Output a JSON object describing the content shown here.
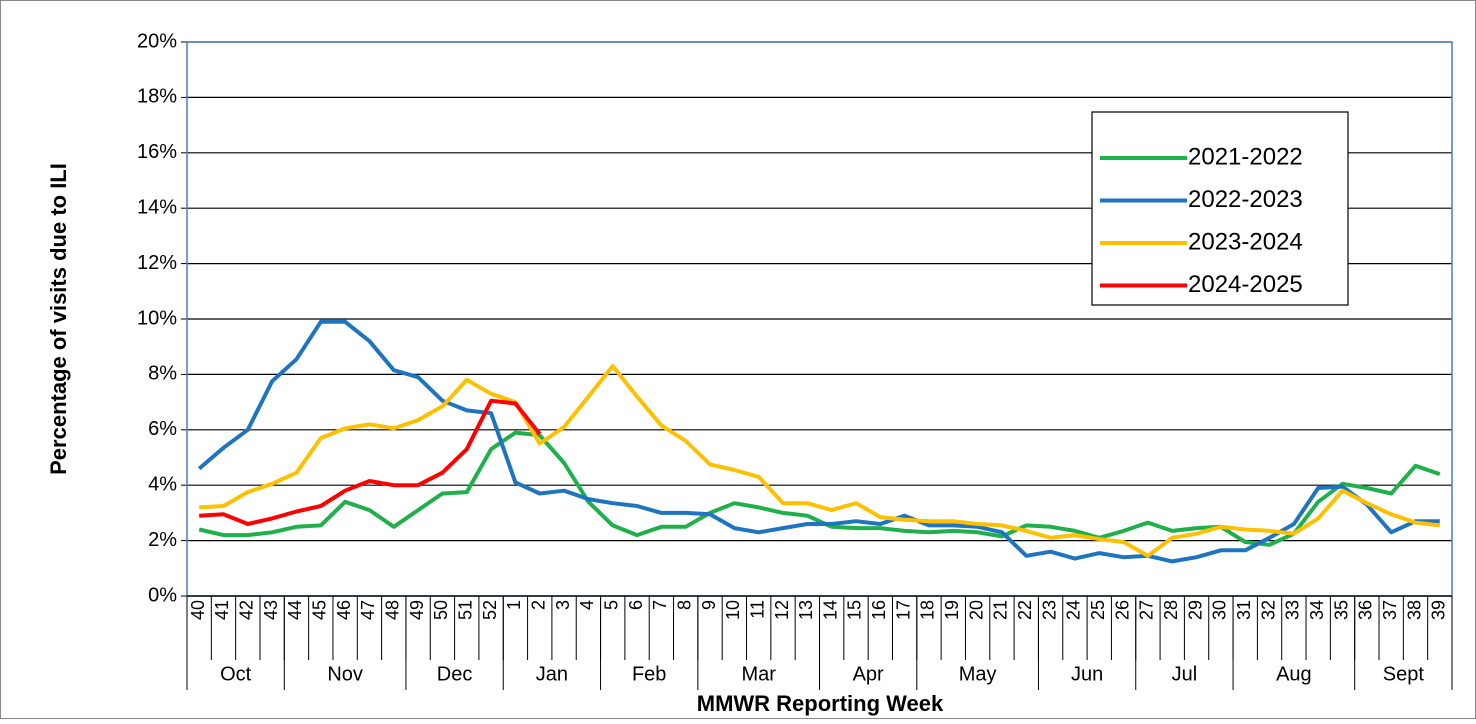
{
  "chart_data": {
    "type": "line",
    "y_label": "Percentage of visits due to ILI",
    "x_label": "MMWR Reporting Week",
    "categories": [
      "40",
      "41",
      "42",
      "43",
      "44",
      "45",
      "46",
      "47",
      "48",
      "49",
      "50",
      "51",
      "52",
      "1",
      "2",
      "3",
      "4",
      "5",
      "6",
      "7",
      "8",
      "9",
      "10",
      "11",
      "12",
      "13",
      "14",
      "15",
      "16",
      "17",
      "18",
      "19",
      "20",
      "21",
      "22",
      "23",
      "24",
      "25",
      "26",
      "27",
      "28",
      "29",
      "30",
      "31",
      "32",
      "33",
      "34",
      "35",
      "36",
      "37",
      "38",
      "39"
    ],
    "month_groups": [
      {
        "label": "Oct",
        "count": 4
      },
      {
        "label": "Nov",
        "count": 5
      },
      {
        "label": "Dec",
        "count": 4
      },
      {
        "label": "Jan",
        "count": 4
      },
      {
        "label": "Feb",
        "count": 4
      },
      {
        "label": "Mar",
        "count": 5
      },
      {
        "label": "Apr",
        "count": 4
      },
      {
        "label": "May",
        "count": 5
      },
      {
        "label": "Jun",
        "count": 4
      },
      {
        "label": "Jul",
        "count": 4
      },
      {
        "label": "Aug",
        "count": 5
      },
      {
        "label": "Sept",
        "count": 4
      }
    ],
    "ylim": [
      0,
      20
    ],
    "yticks": [
      {
        "value": 0,
        "label": "0%"
      },
      {
        "value": 2,
        "label": "2%"
      },
      {
        "value": 4,
        "label": "4%"
      },
      {
        "value": 6,
        "label": "6%"
      },
      {
        "value": 8,
        "label": "8%"
      },
      {
        "value": 10,
        "label": "10%"
      },
      {
        "value": 12,
        "label": "12%"
      },
      {
        "value": 14,
        "label": "14%"
      },
      {
        "value": 16,
        "label": "16%"
      },
      {
        "value": 18,
        "label": "18%"
      },
      {
        "value": 20,
        "label": "20%"
      }
    ],
    "grid": true,
    "legend": "upper right",
    "series": [
      {
        "name": "2021-2022",
        "color": "#1fb04b",
        "values": [
          2.4,
          2.2,
          2.2,
          2.3,
          2.5,
          2.55,
          3.4,
          3.1,
          2.5,
          3.1,
          3.7,
          3.75,
          5.3,
          5.9,
          5.8,
          4.8,
          3.4,
          2.55,
          2.2,
          2.5,
          2.5,
          3.0,
          3.35,
          3.2,
          3.0,
          2.9,
          2.5,
          2.45,
          2.45,
          2.35,
          2.3,
          2.35,
          2.3,
          2.15,
          2.55,
          2.5,
          2.35,
          2.1,
          2.35,
          2.65,
          2.35,
          2.45,
          2.5,
          1.95,
          1.85,
          2.25,
          3.4,
          4.05,
          3.9,
          3.7,
          4.7,
          4.4
        ]
      },
      {
        "name": "2022-2023",
        "color": "#1f74c0",
        "values": [
          4.6,
          5.35,
          6.0,
          7.75,
          8.55,
          9.9,
          9.9,
          9.2,
          8.15,
          7.9,
          7.05,
          6.7,
          6.6,
          4.1,
          3.7,
          3.8,
          3.5,
          3.35,
          3.25,
          3.0,
          3.0,
          2.95,
          2.45,
          2.3,
          2.45,
          2.6,
          2.6,
          2.7,
          2.6,
          2.9,
          2.55,
          2.55,
          2.5,
          2.3,
          1.45,
          1.6,
          1.35,
          1.55,
          1.4,
          1.45,
          1.25,
          1.4,
          1.65,
          1.65,
          2.1,
          2.6,
          3.9,
          3.95,
          3.3,
          2.3,
          2.7,
          2.7
        ]
      },
      {
        "name": "2023-2024",
        "color": "#ffc000",
        "values": [
          3.2,
          3.25,
          3.75,
          4.05,
          4.45,
          5.7,
          6.05,
          6.2,
          6.05,
          6.35,
          6.85,
          7.8,
          7.3,
          7.0,
          5.5,
          6.1,
          7.2,
          8.3,
          7.2,
          6.15,
          5.6,
          4.75,
          4.55,
          4.3,
          3.35,
          3.35,
          3.1,
          3.35,
          2.85,
          2.75,
          2.7,
          2.7,
          2.6,
          2.55,
          2.35,
          2.1,
          2.2,
          2.05,
          1.95,
          1.45,
          2.1,
          2.25,
          2.5,
          2.4,
          2.35,
          2.25,
          2.8,
          3.8,
          3.35,
          2.95,
          2.65,
          2.55
        ]
      },
      {
        "name": "2024-2025",
        "color": "#ff0000",
        "values": [
          2.9,
          2.95,
          2.6,
          2.8,
          3.05,
          3.25,
          3.8,
          4.15,
          4.0,
          4.0,
          4.45,
          5.3,
          7.05,
          6.95,
          5.85,
          null,
          null,
          null,
          null,
          null,
          null,
          null,
          null,
          null,
          null,
          null,
          null,
          null,
          null,
          null,
          null,
          null,
          null,
          null,
          null,
          null,
          null,
          null,
          null,
          null,
          null,
          null,
          null,
          null,
          null,
          null,
          null,
          null,
          null,
          null,
          null,
          null
        ]
      }
    ]
  }
}
